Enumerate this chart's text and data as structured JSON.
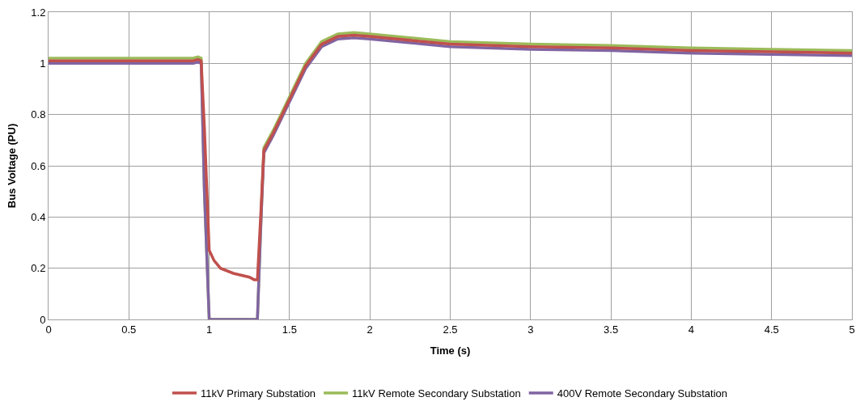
{
  "chart_data": {
    "type": "line",
    "xlabel": "Time (s)",
    "ylabel": "Bus Voltage (PU)",
    "xlim": [
      0,
      5
    ],
    "xticks": [
      0,
      0.5,
      1,
      1.5,
      2,
      2.5,
      3,
      3.5,
      4,
      4.5,
      5
    ],
    "ylim": [
      0,
      1.2
    ],
    "yticks": [
      0,
      0.2,
      0.4,
      0.6,
      0.8,
      1,
      1.2
    ],
    "grid": true,
    "legend": "bottom",
    "marker": "none",
    "line_style": "solid",
    "series": [
      {
        "name": "11kV Primary Substation",
        "color": "#c0504d",
        "x": [
          0,
          0.9,
          0.93,
          0.95,
          0.97,
          1.0,
          1.03,
          1.07,
          1.15,
          1.25,
          1.28,
          1.3,
          1.32,
          1.34,
          1.4,
          1.5,
          1.6,
          1.7,
          1.8,
          1.9,
          2.0,
          2.5,
          3,
          3.5,
          4,
          4.5,
          5
        ],
        "values": [
          1.01,
          1.01,
          1.015,
          1.01,
          0.75,
          0.27,
          0.23,
          0.2,
          0.18,
          0.165,
          0.155,
          0.155,
          0.4,
          0.66,
          0.73,
          0.86,
          0.99,
          1.075,
          1.105,
          1.11,
          1.105,
          1.075,
          1.065,
          1.06,
          1.05,
          1.045,
          1.04
        ]
      },
      {
        "name": "11kV Remote Secondary Substation",
        "color": "#9bbb59",
        "x": [
          0,
          0.9,
          0.93,
          0.95,
          0.97,
          1.0,
          1.3,
          1.32,
          1.34,
          1.4,
          1.5,
          1.6,
          1.7,
          1.8,
          1.9,
          2.0,
          2.5,
          3,
          3.5,
          4,
          4.5,
          5
        ],
        "values": [
          1.02,
          1.02,
          1.025,
          1.02,
          0.5,
          0,
          0,
          0.35,
          0.67,
          0.74,
          0.87,
          1.0,
          1.085,
          1.115,
          1.12,
          1.115,
          1.085,
          1.075,
          1.07,
          1.06,
          1.055,
          1.05
        ]
      },
      {
        "name": "400V Remote Secondary Substation",
        "color": "#8064a2",
        "x": [
          0,
          0.9,
          0.93,
          0.95,
          0.97,
          1.0,
          1.3,
          1.32,
          1.34,
          1.4,
          1.5,
          1.6,
          1.7,
          1.8,
          1.9,
          2.0,
          2.5,
          3,
          3.5,
          4,
          4.5,
          5
        ],
        "values": [
          1.0,
          1.0,
          1.005,
          1.0,
          0.5,
          0,
          0,
          0.35,
          0.65,
          0.72,
          0.85,
          0.98,
          1.065,
          1.095,
          1.1,
          1.095,
          1.065,
          1.055,
          1.05,
          1.04,
          1.035,
          1.03
        ]
      }
    ]
  }
}
